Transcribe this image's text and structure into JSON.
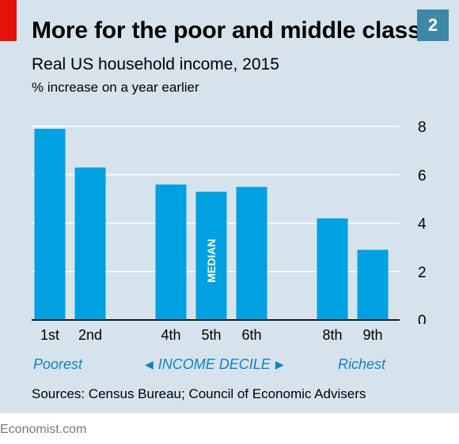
{
  "header": {
    "title": "More for the poor and middle class",
    "badge": "2",
    "subtitle": "Real US household income, 2015",
    "unit_label": "% increase on a year earlier"
  },
  "chart_data": {
    "type": "bar",
    "categories": [
      "1st",
      "2nd",
      "4th",
      "5th",
      "6th",
      "8th",
      "9th"
    ],
    "values": [
      7.9,
      6.3,
      5.6,
      5.3,
      5.5,
      4.2,
      2.9
    ],
    "bar_annotations": {
      "5th": "MEDIAN"
    },
    "yticks": [
      0,
      2,
      4,
      6,
      8
    ],
    "ylim": [
      0,
      8
    ],
    "y_axis_side": "right",
    "grid": true,
    "group_labels": {
      "left": "Poorest",
      "center": "INCOME DECILE",
      "right": "Richest"
    },
    "colors": {
      "bar": "#00a1e0",
      "grid": "#ffffff",
      "accent_text": "#0f82c1"
    }
  },
  "footer": {
    "sources": "Sources: Census Bureau; Council of Economic Advisers",
    "credit": "Economist.com"
  }
}
